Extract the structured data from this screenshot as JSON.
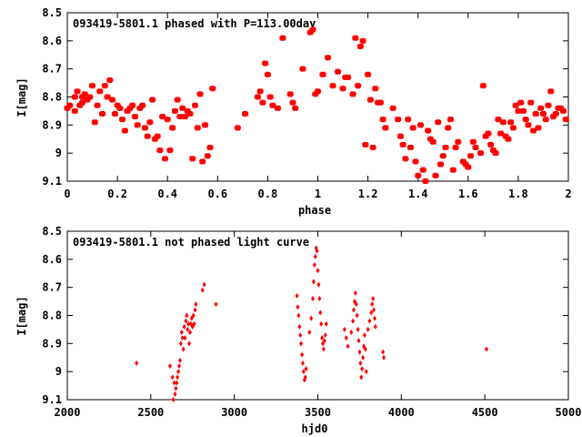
{
  "colors": {
    "points": "#ff0000",
    "axes": "#000000",
    "background": "#ffffff"
  },
  "chart_data": [
    {
      "type": "scatter",
      "title": "093419-5801.1 phased with P=113.00day",
      "xlabel": "phase",
      "ylabel": "I[mag]",
      "xlim": [
        0,
        2
      ],
      "ylim": [
        8.5,
        9.1
      ],
      "y_inverted": true,
      "xticks": [
        0,
        0.2,
        0.4,
        0.6,
        0.8,
        1,
        1.2,
        1.4,
        1.6,
        1.8,
        2
      ],
      "xtick_labels": [
        "0",
        "0.2",
        "0.4",
        "0.6",
        "0.8",
        "1",
        "1.2",
        "1.4",
        "1.6",
        "1.8",
        "2"
      ],
      "yticks": [
        8.5,
        8.6,
        8.7,
        8.8,
        8.9,
        9,
        9.1
      ],
      "ytick_labels": [
        "8.5",
        "8.6",
        "8.7",
        "8.8",
        "8.9",
        "9",
        "9.1"
      ],
      "grid": false,
      "marker": "star",
      "series": [
        {
          "x": [
            0.0,
            0.01,
            0.03,
            0.03,
            0.04,
            0.05,
            0.06,
            0.06,
            0.07,
            0.08,
            0.09,
            0.1,
            0.11,
            0.12,
            0.13,
            0.14,
            0.15,
            0.16,
            0.17,
            0.18,
            0.19,
            0.2,
            0.21,
            0.22,
            0.23,
            0.24,
            0.25,
            0.26,
            0.27,
            0.28,
            0.29,
            0.3,
            0.31,
            0.32,
            0.33,
            0.34,
            0.35,
            0.36,
            0.37,
            0.38,
            0.39,
            0.4,
            0.41,
            0.42,
            0.43,
            0.44,
            0.45,
            0.46,
            0.47,
            0.48,
            0.49,
            0.5,
            0.51,
            0.52,
            0.53,
            0.54,
            0.55,
            0.56,
            0.57,
            0.58,
            0.68,
            0.71,
            0.76,
            0.77,
            0.78,
            0.79,
            0.8,
            0.81,
            0.82,
            0.84,
            0.86,
            0.89,
            0.9,
            0.91,
            0.94,
            0.97,
            0.98,
            0.99,
            1.0,
            1.02,
            1.04,
            1.06,
            1.08,
            1.1,
            1.11,
            1.12,
            1.14,
            1.15,
            1.16,
            1.17,
            1.18,
            1.19,
            1.2,
            1.21,
            1.22,
            1.23,
            1.24,
            1.25,
            1.26,
            1.27,
            1.3,
            1.32,
            1.33,
            1.34,
            1.35,
            1.36,
            1.37,
            1.38,
            1.39,
            1.4,
            1.41,
            1.42,
            1.43,
            1.44,
            1.45,
            1.46,
            1.47,
            1.48,
            1.49,
            1.5,
            1.51,
            1.52,
            1.53,
            1.54,
            1.55,
            1.56,
            1.58,
            1.59,
            1.6,
            1.61,
            1.62,
            1.63,
            1.65,
            1.66,
            1.67,
            1.68,
            1.69,
            1.7,
            1.71,
            1.72,
            1.73,
            1.74,
            1.75,
            1.76,
            1.77,
            1.78,
            1.79,
            1.8,
            1.81,
            1.82,
            1.83,
            1.84,
            1.85,
            1.86,
            1.87,
            1.88,
            1.89,
            1.9,
            1.91,
            1.92,
            1.93,
            1.94,
            1.95,
            1.96,
            1.97,
            1.98,
            1.99
          ],
          "y": [
            8.84,
            8.83,
            8.85,
            8.8,
            8.78,
            8.83,
            8.8,
            8.82,
            8.79,
            8.81,
            8.8,
            8.76,
            8.89,
            8.83,
            8.78,
            8.86,
            8.76,
            8.8,
            8.74,
            8.81,
            8.86,
            8.83,
            8.84,
            8.88,
            8.92,
            8.85,
            8.84,
            8.83,
            8.87,
            8.9,
            8.84,
            8.83,
            8.91,
            8.94,
            8.89,
            8.81,
            8.95,
            8.94,
            8.99,
            8.87,
            9.02,
            8.88,
            8.99,
            8.91,
            8.85,
            8.81,
            8.87,
            8.84,
            8.87,
            8.85,
            8.86,
            9.02,
            8.83,
            8.91,
            8.79,
            9.03,
            8.9,
            9.01,
            8.98,
            8.77,
            8.91,
            8.86,
            8.8,
            8.78,
            8.82,
            8.68,
            8.72,
            8.8,
            8.83,
            8.84,
            8.59,
            8.79,
            8.82,
            8.84,
            8.7,
            8.57,
            8.56,
            8.79,
            8.78,
            8.72,
            8.66,
            8.76,
            8.71,
            8.77,
            8.73,
            8.73,
            8.79,
            8.59,
            8.76,
            8.62,
            8.6,
            8.97,
            8.72,
            8.81,
            8.98,
            8.77,
            8.82,
            8.82,
            8.88,
            8.91,
            8.84,
            8.88,
            8.94,
            8.97,
            9.02,
            8.88,
            8.98,
            8.91,
            9.03,
            9.08,
            8.9,
            9.06,
            9.1,
            8.92,
            8.95,
            8.96,
            9.08,
            8.89,
            9.04,
            9.01,
            8.98,
            8.91,
            8.88,
            9.06,
            8.98,
            8.96,
            9.03,
            9.04,
            9.05,
            9.01,
            8.96,
            8.98,
            9.0,
            8.76,
            8.94,
            8.93,
            8.97,
            8.99,
            9.0,
            8.88,
            8.93,
            8.89,
            8.94,
            8.95,
            8.89,
            8.91,
            8.83,
            8.85,
            8.82,
            8.85,
            8.88,
            8.9,
            8.82,
            8.92,
            8.86,
            8.91,
            8.84,
            8.86,
            8.88,
            8.83,
            8.78,
            8.87,
            8.86,
            8.84,
            8.84,
            8.85,
            8.88
          ]
        }
      ]
    },
    {
      "type": "scatter",
      "title": "093419-5801.1 not phased light curve",
      "xlabel": "hjd0",
      "ylabel": "I[mag]",
      "xlim": [
        2000,
        5000
      ],
      "ylim": [
        8.5,
        9.1
      ],
      "y_inverted": true,
      "xticks": [
        2000,
        2500,
        3000,
        3500,
        4000,
        4500,
        5000
      ],
      "xtick_labels": [
        "2000",
        "2500",
        "3000",
        "3500",
        "4000",
        "4500",
        "5000"
      ],
      "yticks": [
        8.5,
        8.6,
        8.7,
        8.8,
        8.9,
        9,
        9.1
      ],
      "ytick_labels": [
        "8.5",
        "8.6",
        "8.7",
        "8.8",
        "8.9",
        "9",
        "9.1"
      ],
      "grid": false,
      "marker": "diamond",
      "series": [
        {
          "x": [
            2415,
            2615,
            2630,
            2635,
            2640,
            2645,
            2650,
            2655,
            2660,
            2665,
            2670,
            2675,
            2680,
            2685,
            2690,
            2695,
            2700,
            2705,
            2710,
            2715,
            2720,
            2725,
            2730,
            2735,
            2740,
            2745,
            2750,
            2755,
            2760,
            2765,
            2770,
            2810,
            2820,
            2890,
            3375,
            3380,
            3385,
            3390,
            3395,
            3400,
            3405,
            3410,
            3415,
            3420,
            3425,
            3430,
            3450,
            3460,
            3470,
            3475,
            3480,
            3485,
            3490,
            3495,
            3500,
            3505,
            3510,
            3515,
            3520,
            3525,
            3530,
            3535,
            3540,
            3545,
            3550,
            3660,
            3670,
            3680,
            3700,
            3710,
            3715,
            3720,
            3725,
            3730,
            3735,
            3740,
            3745,
            3750,
            3755,
            3760,
            3765,
            3770,
            3775,
            3780,
            3785,
            3790,
            3800,
            3810,
            3820,
            3825,
            3830,
            3835,
            3840,
            3845,
            3890,
            3895,
            4510
          ],
          "y": [
            8.97,
            8.98,
            9.02,
            9.1,
            9.04,
            9.08,
            9.06,
            9.04,
            9.02,
            9.0,
            8.98,
            8.96,
            8.9,
            8.86,
            8.88,
            8.92,
            8.84,
            8.88,
            8.82,
            8.8,
            8.85,
            8.83,
            8.9,
            8.86,
            8.83,
            8.81,
            8.84,
            8.8,
            8.83,
            8.78,
            8.76,
            8.71,
            8.69,
            8.76,
            8.73,
            8.77,
            8.8,
            8.84,
            8.87,
            8.9,
            8.94,
            8.97,
            9.0,
            9.03,
            9.02,
            8.99,
            8.86,
            8.81,
            8.74,
            8.68,
            8.62,
            8.59,
            8.56,
            8.57,
            8.64,
            8.69,
            8.74,
            8.79,
            8.83,
            8.88,
            8.9,
            8.92,
            8.89,
            8.87,
            8.83,
            8.85,
            8.88,
            8.91,
            8.86,
            8.82,
            8.78,
            8.75,
            8.72,
            8.76,
            8.8,
            8.85,
            8.89,
            8.93,
            8.97,
            9.02,
            8.99,
            8.95,
            8.91,
            8.87,
            8.92,
            9.0,
            8.85,
            8.82,
            8.79,
            8.76,
            8.74,
            8.78,
            8.81,
            8.84,
            8.93,
            8.95,
            8.92
          ]
        }
      ]
    }
  ]
}
